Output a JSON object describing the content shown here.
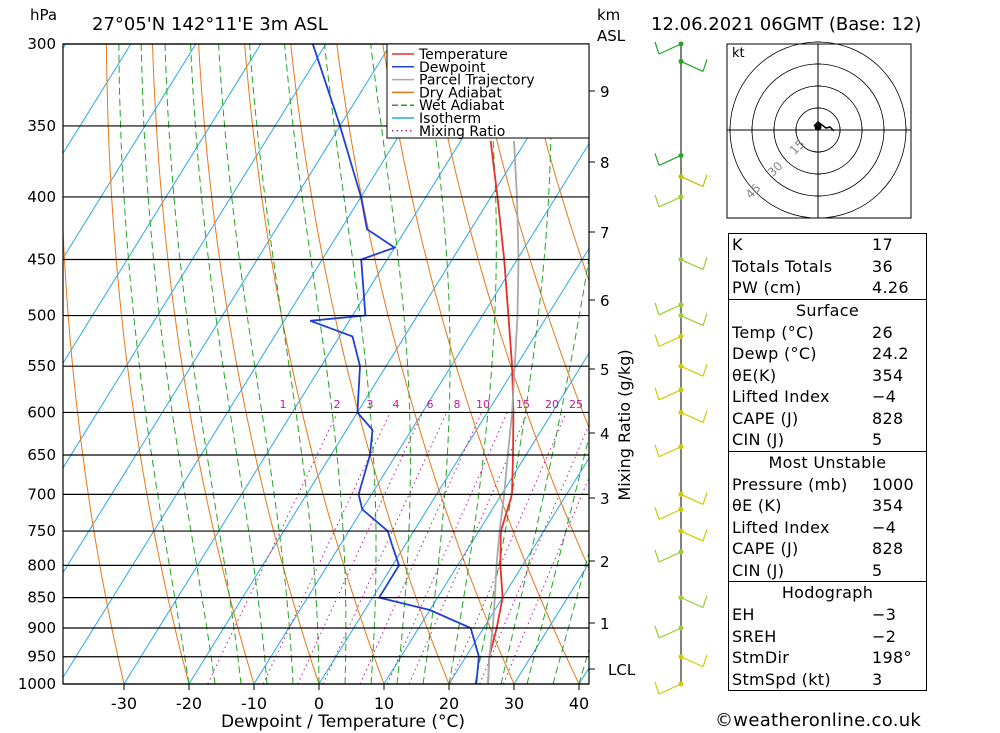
{
  "header": {
    "hpa": "hPa",
    "location": "27°05'N  142°11'E  3m  ASL",
    "km": "km",
    "asl": "ASL",
    "datetime": "12.06.2021  06GMT  (Base: 12)"
  },
  "chart_data": {
    "type": "line",
    "xlabel": "Dewpoint / Temperature (°C)",
    "ylabel_left": "hPa",
    "ylabel_mid": "Mixing Ratio (g/kg)",
    "pressure_levels": [
      300,
      350,
      400,
      450,
      500,
      550,
      600,
      650,
      700,
      750,
      800,
      850,
      900,
      950,
      1000
    ],
    "x_ticks": [
      -30,
      -20,
      -10,
      0,
      10,
      20,
      30,
      40
    ],
    "km_ticks": [
      1,
      2,
      3,
      4,
      5,
      6,
      7,
      8,
      9
    ],
    "mixing_ratio_labels": [
      "1",
      "2",
      "3",
      "4",
      "6",
      "8",
      "10",
      "15",
      "20",
      "25"
    ],
    "lcl_label": "LCL",
    "series": [
      {
        "name": "Temperature",
        "color": "#e8302a",
        "points": [
          [
            1000,
            26
          ],
          [
            950,
            23.6
          ],
          [
            900,
            22
          ],
          [
            850,
            20
          ],
          [
            800,
            16.6
          ],
          [
            750,
            13.4
          ],
          [
            700,
            11.6
          ],
          [
            650,
            8
          ],
          [
            600,
            4
          ],
          [
            550,
            -0.6
          ],
          [
            500,
            -6
          ],
          [
            450,
            -12
          ],
          [
            400,
            -19
          ],
          [
            360,
            -25.4
          ]
        ]
      },
      {
        "name": "Dewpoint",
        "color": "#1f3fd6",
        "points": [
          [
            1000,
            24.2
          ],
          [
            950,
            22
          ],
          [
            900,
            18
          ],
          [
            870,
            10
          ],
          [
            850,
            1
          ],
          [
            800,
            1
          ],
          [
            770,
            -2
          ],
          [
            750,
            -4
          ],
          [
            720,
            -10
          ],
          [
            700,
            -12
          ],
          [
            650,
            -14
          ],
          [
            620,
            -16
          ],
          [
            600,
            -20
          ],
          [
            550,
            -24
          ],
          [
            520,
            -28
          ],
          [
            505,
            -36
          ],
          [
            500,
            -28
          ],
          [
            450,
            -34
          ],
          [
            440,
            -30
          ],
          [
            425,
            -36
          ],
          [
            400,
            -40
          ],
          [
            350,
            -50
          ],
          [
            300,
            -62
          ]
        ]
      },
      {
        "name": "Parcel Trajectory",
        "color": "#a9a9a9",
        "points": [
          [
            1000,
            26
          ],
          [
            950,
            23.6
          ],
          [
            900,
            21.4
          ],
          [
            850,
            18.8
          ],
          [
            800,
            16
          ],
          [
            750,
            13.2
          ],
          [
            700,
            10.4
          ],
          [
            650,
            7.2
          ],
          [
            600,
            3.8
          ],
          [
            550,
            -0.2
          ],
          [
            500,
            -4.6
          ],
          [
            450,
            -9.8
          ],
          [
            400,
            -16
          ],
          [
            360,
            -21.8
          ]
        ]
      }
    ],
    "legend": [
      "Temperature",
      "Dewpoint",
      "Parcel Trajectory",
      "Dry Adiabat",
      "Wet Adiabat",
      "Isotherm",
      "Mixing Ratio"
    ],
    "legend_colors": [
      "#e8302a",
      "#1f3fd6",
      "#a9a9a9",
      "#e67817",
      "#23a524",
      "#2aa7e6",
      "#c2179c"
    ],
    "hodograph_unit": "kt",
    "hodograph_rings": [
      "15",
      "30",
      "45"
    ]
  },
  "stats": {
    "indices": [
      {
        "k": "K",
        "v": "17"
      },
      {
        "k": "Totals Totals",
        "v": "36"
      },
      {
        "k": "PW (cm)",
        "v": "4.26"
      }
    ],
    "surface_title": "Surface",
    "surface": [
      {
        "k": "Temp (°C)",
        "v": "26"
      },
      {
        "k": "Dewp (°C)",
        "v": "24.2"
      },
      {
        "k": "θE(K)",
        "v": "354"
      },
      {
        "k": "Lifted Index",
        "v": "−4"
      },
      {
        "k": "CAPE (J)",
        "v": "828"
      },
      {
        "k": "CIN (J)",
        "v": "5"
      }
    ],
    "mu_title": "Most Unstable",
    "mu": [
      {
        "k": "Pressure (mb)",
        "v": "1000"
      },
      {
        "k": "θE (K)",
        "v": "354"
      },
      {
        "k": "Lifted Index",
        "v": "−4"
      },
      {
        "k": "CAPE (J)",
        "v": "828"
      },
      {
        "k": "CIN (J)",
        "v": "5"
      }
    ],
    "hodo_title": "Hodograph",
    "hodo": [
      {
        "k": "EH",
        "v": "−3"
      },
      {
        "k": "SREH",
        "v": "−2"
      },
      {
        "k": "StmDir",
        "v": "198°"
      },
      {
        "k": "StmSpd (kt)",
        "v": "3"
      }
    ]
  },
  "footer": "©weatheronline.co.uk"
}
